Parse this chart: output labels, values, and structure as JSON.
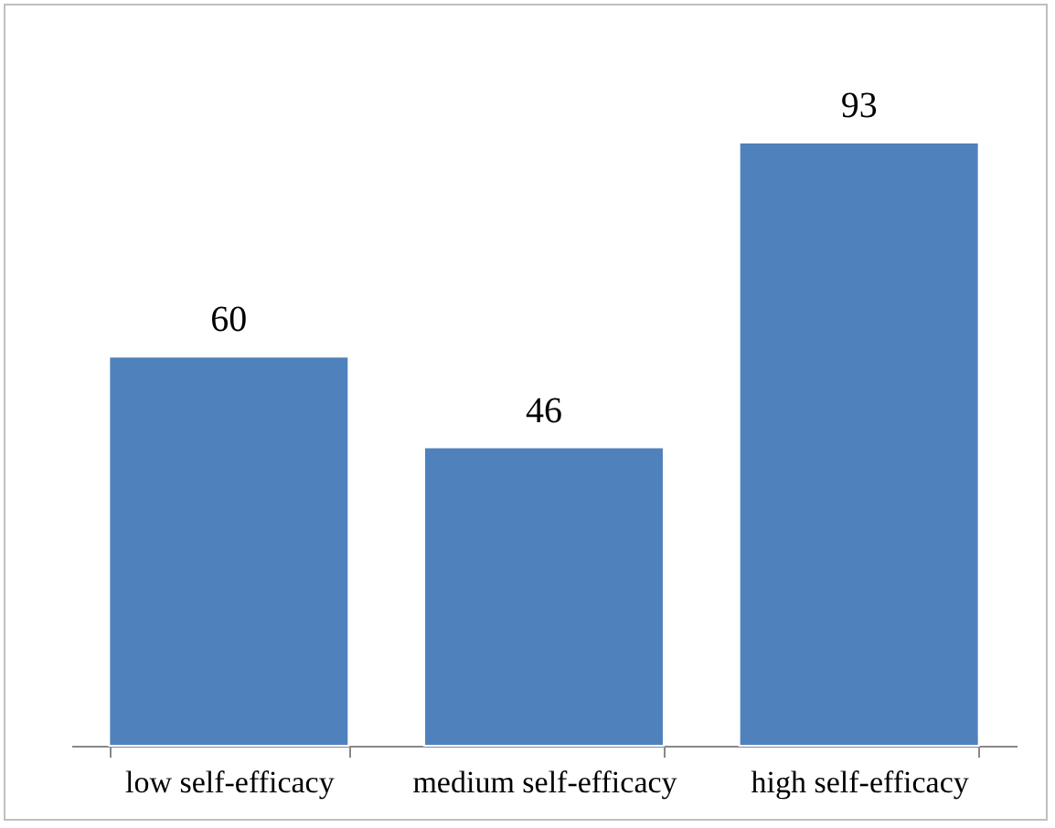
{
  "chart_data": {
    "type": "bar",
    "categories": [
      "low self-efficacy",
      "medium self-efficacy",
      "high self-efficacy"
    ],
    "values": [
      60,
      46,
      93
    ],
    "color": "#4f81bd",
    "data_labels": true
  }
}
